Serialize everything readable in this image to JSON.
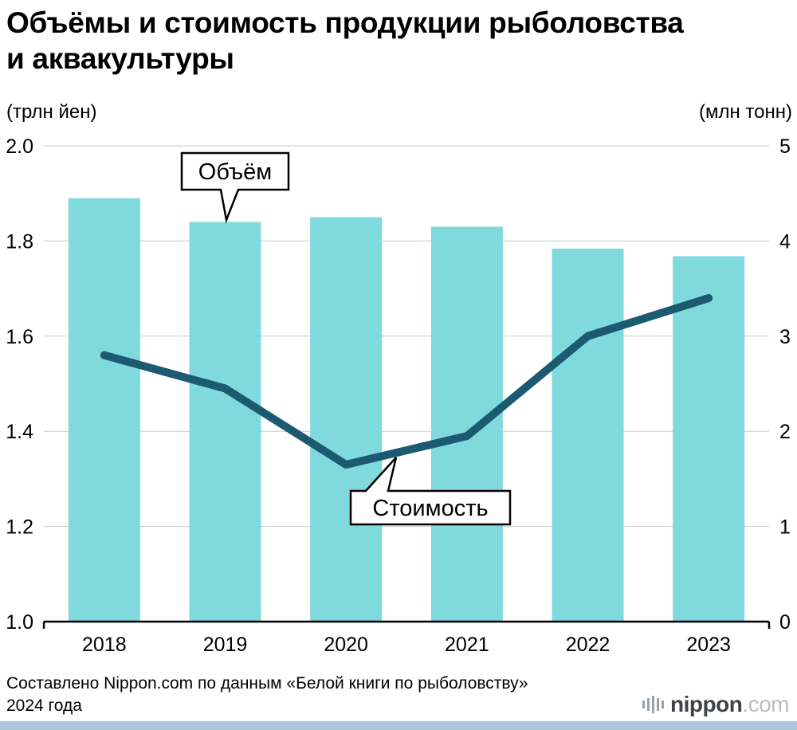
{
  "title": "Объёмы и стоимость продукции рыболовства и аквакультуры",
  "title_lines": [
    "Объёмы и стоимость продукции рыболовства",
    "и аквакультуры"
  ],
  "left_axis_unit": "(трлн йен)",
  "right_axis_unit": "(млн тонн)",
  "footer": {
    "source_line1": "Составлено Nippon.com по данным «Белой книги по рыболовству»",
    "source_line2": "2024 года",
    "logo_text": "nippon",
    "logo_suffix": ".com"
  },
  "colors": {
    "bar": "#7fd9dd",
    "line": "#1b5a70",
    "grid": "#c9c9c9",
    "axis": "#000000",
    "bottom_strip": "#aec3de"
  },
  "chart_data": {
    "type": "bar",
    "subtype": "bar+line dual axis",
    "categories": [
      "2018",
      "2019",
      "2020",
      "2021",
      "2022",
      "2023"
    ],
    "series": [
      {
        "name": "Объём",
        "type": "bar",
        "axis": "right",
        "unit": "млн тонн",
        "values": [
          4.45,
          4.2,
          4.25,
          4.15,
          3.92,
          3.84
        ]
      },
      {
        "name": "Стоимость",
        "type": "line",
        "axis": "left",
        "unit": "трлн йен",
        "values": [
          1.56,
          1.49,
          1.33,
          1.39,
          1.6,
          1.68
        ]
      }
    ],
    "left_axis": {
      "label": "(трлн йен)",
      "min": 1.0,
      "max": 2.0,
      "ticks": [
        "2.0",
        "1.8",
        "1.6",
        "1.4",
        "1.2",
        "1.0"
      ]
    },
    "right_axis": {
      "label": "(млн тонн)",
      "min": 0,
      "max": 5,
      "ticks": [
        "5",
        "4",
        "3",
        "2",
        "1",
        "0"
      ]
    },
    "grid": true,
    "legend_position": "callouts-on-chart",
    "annotations": [
      {
        "label": "Объём",
        "attached_to": "bars",
        "near": "2019"
      },
      {
        "label": "Стоимость",
        "attached_to": "line",
        "near": "2020-2021"
      }
    ]
  }
}
